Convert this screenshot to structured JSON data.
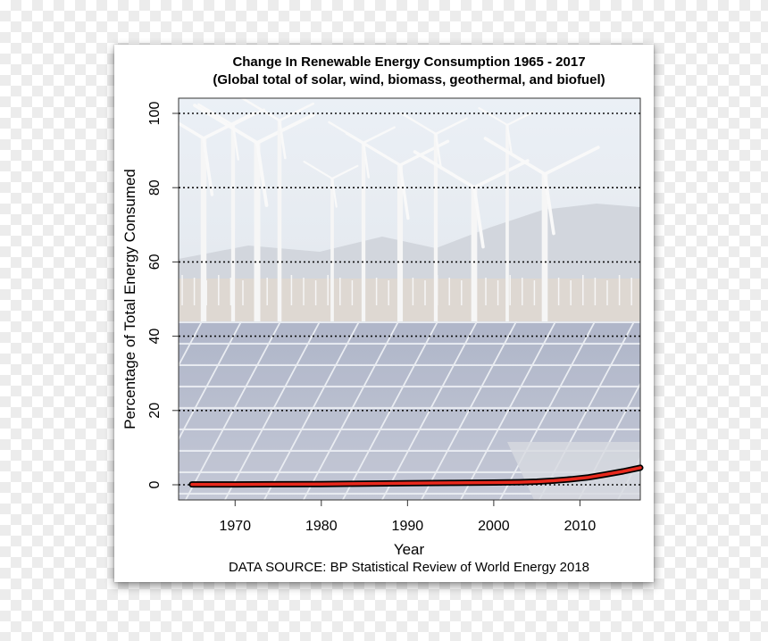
{
  "chart_data": {
    "type": "line",
    "title": "Change In Renewable Energy Consumption 1965 - 2017",
    "subtitle": "(Global total of solar, wind, biomass, geothermal, and biofuel)",
    "xlabel": "Year",
    "ylabel": "Percentage of Total Energy Consumed",
    "source": "DATA SOURCE: BP Statistical Review of World Energy 2018",
    "xlim": [
      1965,
      2017
    ],
    "ylim": [
      0,
      100
    ],
    "x_ticks": [
      1970,
      1980,
      1990,
      2000,
      2010
    ],
    "y_ticks": [
      0,
      20,
      40,
      60,
      80,
      100
    ],
    "grid": "horizontal dotted",
    "background": "wind turbines and solar panels photo",
    "series": [
      {
        "color": "#e8281c",
        "x": [
          1965,
          1970,
          1975,
          1980,
          1985,
          1990,
          1995,
          2000,
          2003,
          2005,
          2007,
          2009,
          2011,
          2013,
          2015,
          2017
        ],
        "y": [
          0.1,
          0.1,
          0.15,
          0.2,
          0.3,
          0.4,
          0.5,
          0.6,
          0.7,
          0.85,
          1.1,
          1.5,
          2.0,
          2.8,
          3.6,
          4.6
        ]
      }
    ]
  }
}
